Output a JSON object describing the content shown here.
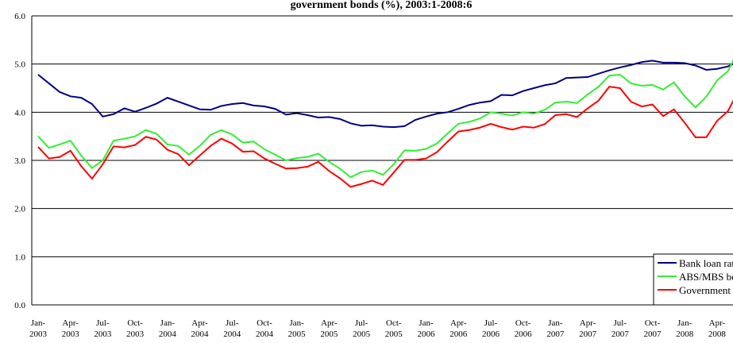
{
  "chart_data": {
    "type": "line",
    "title": "government bonds (%), 2003:1-2008:6",
    "categories": [
      "Jan-2003",
      null,
      null,
      "Apr-2003",
      null,
      null,
      "Jul-2003",
      null,
      null,
      "Oct-2003",
      null,
      null,
      "Jan-2004",
      null,
      null,
      "Apr-2004",
      null,
      null,
      "Jul-2004",
      null,
      null,
      "Oct-2004",
      null,
      null,
      "Jan-2005",
      null,
      null,
      "Apr-2005",
      null,
      null,
      "Jul-2005",
      null,
      null,
      "Oct-2005",
      null,
      null,
      "Jan-2006",
      null,
      null,
      "Apr-2006",
      null,
      null,
      "Jul-2006",
      null,
      null,
      "Oct-2006",
      null,
      null,
      "Jan-2007",
      null,
      null,
      "Apr-2007",
      null,
      null,
      "Jul-2007",
      null,
      null,
      "Oct-2007",
      null,
      null,
      "Jan-2008",
      null,
      null,
      "Apr-2008",
      null,
      null
    ],
    "series": [
      {
        "name": "Bank loan rate (NB)",
        "color": "#000080",
        "values": [
          4.78,
          4.6,
          4.42,
          4.33,
          4.3,
          4.17,
          3.91,
          3.96,
          4.08,
          4.01,
          4.09,
          4.18,
          4.3,
          4.22,
          4.14,
          4.06,
          4.05,
          4.13,
          4.17,
          4.19,
          4.14,
          4.12,
          4.07,
          3.95,
          3.98,
          3.94,
          3.89,
          3.9,
          3.86,
          3.77,
          3.72,
          3.73,
          3.7,
          3.69,
          3.71,
          3.84,
          3.91,
          3.97,
          4.0,
          4.07,
          4.15,
          4.2,
          4.23,
          4.36,
          4.35,
          4.44,
          4.5,
          4.56,
          4.6,
          4.71,
          4.72,
          4.73,
          4.8,
          4.87,
          4.93,
          4.98,
          5.04,
          5.07,
          5.03,
          5.03,
          5.02,
          4.97,
          4.88,
          4.9,
          4.95,
          5.05
        ]
      },
      {
        "name": "ABS/MBS bonds",
        "color": "#33ee33",
        "values": [
          3.5,
          3.26,
          3.33,
          3.41,
          3.1,
          2.84,
          3.0,
          3.41,
          3.45,
          3.5,
          3.63,
          3.55,
          3.33,
          3.3,
          3.12,
          3.3,
          3.53,
          3.63,
          3.54,
          3.37,
          3.39,
          3.23,
          3.12,
          3.0,
          3.05,
          3.07,
          3.14,
          2.97,
          2.83,
          2.65,
          2.76,
          2.79,
          2.7,
          2.92,
          3.21,
          3.2,
          3.24,
          3.35,
          3.56,
          3.76,
          3.8,
          3.87,
          4.0,
          3.97,
          3.93,
          4.0,
          3.97,
          4.05,
          4.2,
          4.22,
          4.19,
          4.37,
          4.53,
          4.76,
          4.78,
          4.6,
          4.55,
          4.57,
          4.47,
          4.62,
          4.33,
          4.1,
          4.32,
          4.66,
          4.85,
          5.3
        ]
      },
      {
        "name": "Government bond yield",
        "color": "#ff0000",
        "values": [
          3.28,
          3.04,
          3.07,
          3.2,
          2.88,
          2.62,
          2.92,
          3.29,
          3.27,
          3.32,
          3.49,
          3.43,
          3.22,
          3.13,
          2.9,
          3.1,
          3.3,
          3.45,
          3.35,
          3.18,
          3.19,
          3.04,
          2.93,
          2.83,
          2.84,
          2.87,
          2.97,
          2.78,
          2.63,
          2.45,
          2.51,
          2.58,
          2.49,
          2.75,
          3.01,
          3.01,
          3.04,
          3.17,
          3.39,
          3.6,
          3.63,
          3.68,
          3.76,
          3.69,
          3.64,
          3.7,
          3.68,
          3.75,
          3.94,
          3.96,
          3.9,
          4.08,
          4.24,
          4.53,
          4.5,
          4.22,
          4.12,
          4.16,
          3.92,
          4.06,
          3.78,
          3.48,
          3.48,
          3.82,
          4.02,
          4.45
        ]
      }
    ],
    "ylim": [
      0,
      6
    ],
    "yticks": [
      {
        "value": 0,
        "label": "0.0"
      },
      {
        "value": 1,
        "label": "1.0"
      },
      {
        "value": 2,
        "label": "2.0"
      },
      {
        "value": 3,
        "label": "3.0"
      },
      {
        "value": 4,
        "label": "4.0"
      },
      {
        "value": 5,
        "label": "5.0"
      },
      {
        "value": 6,
        "label": "6.0"
      }
    ],
    "grid": true,
    "legend": "lower right"
  }
}
